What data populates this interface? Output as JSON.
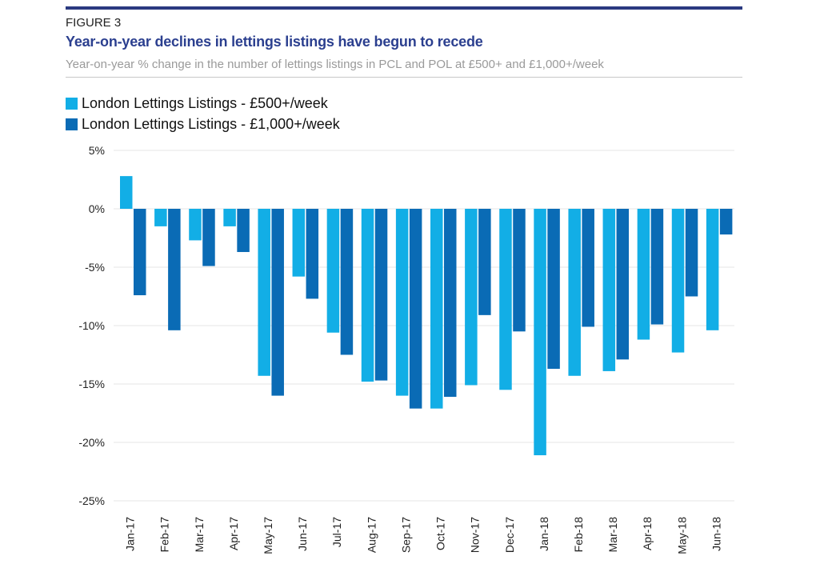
{
  "header": {
    "figure_label": "FIGURE 3",
    "title": "Year-on-year declines in lettings listings have begun to recede",
    "subtitle": "Year-on-year % change in the number of lettings listings in PCL and POL at £500+ and £1,000+/week"
  },
  "colors": {
    "accent_bar": "#2b3a80",
    "series_500": "#12aee6",
    "series_1000": "#0a6bb5",
    "title": "#2b3f8f"
  },
  "chart_data": {
    "type": "bar",
    "categories": [
      "Jan-17",
      "Feb-17",
      "Mar-17",
      "Apr-17",
      "May-17",
      "Jun-17",
      "Jul-17",
      "Aug-17",
      "Sep-17",
      "Oct-17",
      "Nov-17",
      "Dec-17",
      "Jan-18",
      "Feb-18",
      "Mar-18",
      "Apr-18",
      "May-18",
      "Jun-18"
    ],
    "series": [
      {
        "name": "London Lettings Listings - £500+/week",
        "values": [
          2.8,
          -1.5,
          -2.7,
          -1.5,
          -14.3,
          -5.8,
          -10.6,
          -14.8,
          -16.0,
          -17.1,
          -15.1,
          -15.5,
          -21.1,
          -14.3,
          -13.9,
          -11.2,
          -12.3,
          -10.4
        ]
      },
      {
        "name": "London Lettings Listings - £1,000+/week",
        "values": [
          -7.4,
          -10.4,
          -4.9,
          -3.7,
          -16.0,
          -7.7,
          -12.5,
          -14.7,
          -17.1,
          -16.1,
          -9.1,
          -10.5,
          -13.7,
          -10.1,
          -12.9,
          -9.9,
          -7.5,
          -2.2
        ]
      }
    ],
    "yticks": [
      "5%",
      "0%",
      "-5%",
      "-10%",
      "-15%",
      "-20%",
      "-25%"
    ],
    "ylim": [
      -25,
      5
    ],
    "grid": true,
    "legend_position": "top-left"
  }
}
